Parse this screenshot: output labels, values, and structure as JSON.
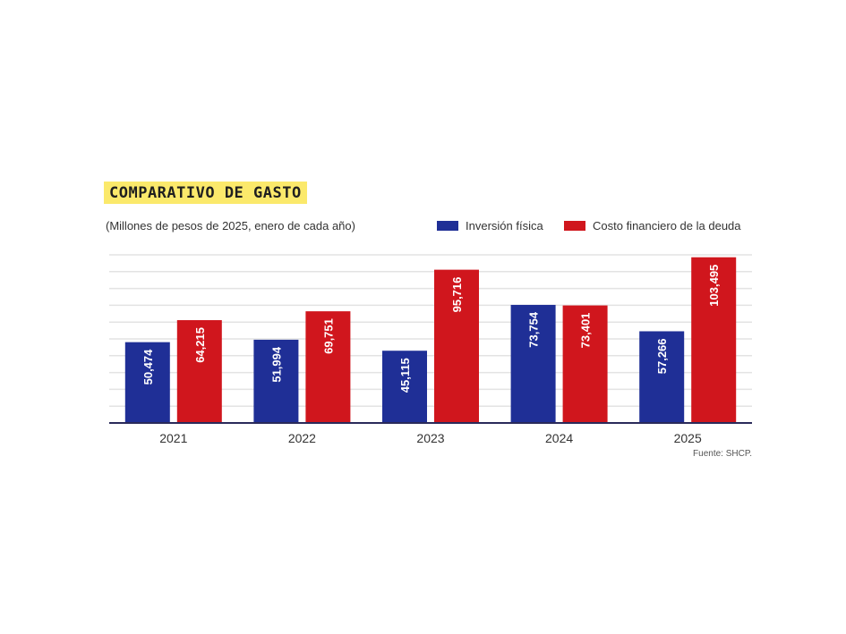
{
  "header": {
    "title": "COMPARATIVO DE GASTO",
    "subtitle": "(Millones de pesos de 2025, enero de cada año)",
    "source": "Fuente: SHCP."
  },
  "colors": {
    "series_1": "#1f2f96",
    "series_2": "#d0161d",
    "title_highlight": "#fbe96b",
    "grid": "#e3e3e3"
  },
  "chart_data": {
    "type": "bar",
    "title": "COMPARATIVO DE GASTO",
    "subtitle": "(Millones de pesos de 2025, enero de cada año)",
    "xlabel": "",
    "ylabel": "",
    "categories": [
      "2021",
      "2022",
      "2023",
      "2024",
      "2025"
    ],
    "series": [
      {
        "name": "Inversión física",
        "values": [
          50474,
          51994,
          45115,
          73754,
          57266
        ],
        "labels": [
          "50,474",
          "51,994",
          "45,115",
          "73,754",
          "57,266"
        ]
      },
      {
        "name": "Costo financiero de la deuda",
        "values": [
          64215,
          69751,
          95716,
          73401,
          103495
        ],
        "labels": [
          "64,215",
          "69,751",
          "95,716",
          "73,401",
          "103,495"
        ]
      }
    ],
    "ylim": [
      0,
      105000
    ],
    "grid": true,
    "legend": "top-right",
    "value_labels": "inside-bar-rotated"
  }
}
